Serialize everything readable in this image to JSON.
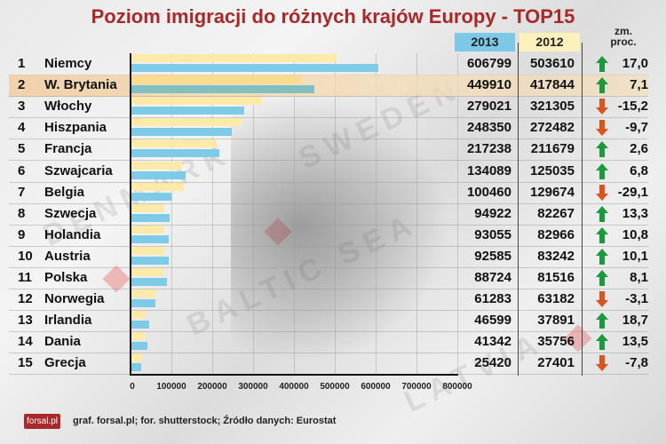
{
  "title": "Poziom imigracji do różnych krajów Europy - TOP15",
  "header": {
    "col_2013": "2013",
    "col_2012": "2012",
    "col_change_line1": "zm.",
    "col_change_line2": "proc."
  },
  "rows": [
    {
      "rank": "1",
      "country": "Niemcy",
      "v2013": "606799",
      "v2012": "503610",
      "trend": "up",
      "pct": "17,0"
    },
    {
      "rank": "2",
      "country": "W. Brytania",
      "v2013": "449910",
      "v2012": "417844",
      "trend": "up",
      "pct": "7,1",
      "highlight": true
    },
    {
      "rank": "3",
      "country": "Włochy",
      "v2013": "279021",
      "v2012": "321305",
      "trend": "down",
      "pct": "-15,2"
    },
    {
      "rank": "4",
      "country": "Hiszpania",
      "v2013": "248350",
      "v2012": "272482",
      "trend": "down",
      "pct": "-9,7"
    },
    {
      "rank": "5",
      "country": "Francja",
      "v2013": "217238",
      "v2012": "211679",
      "trend": "up",
      "pct": "2,6"
    },
    {
      "rank": "6",
      "country": "Szwajcaria",
      "v2013": "134089",
      "v2012": "125035",
      "trend": "up",
      "pct": "6,8"
    },
    {
      "rank": "7",
      "country": "Belgia",
      "v2013": "100460",
      "v2012": "129674",
      "trend": "down",
      "pct": "-29,1"
    },
    {
      "rank": "8",
      "country": "Szwecja",
      "v2013": "94922",
      "v2012": "82267",
      "trend": "up",
      "pct": "13,3"
    },
    {
      "rank": "9",
      "country": "Holandia",
      "v2013": "93055",
      "v2012": "82966",
      "trend": "up",
      "pct": "10,8"
    },
    {
      "rank": "10",
      "country": "Austria",
      "v2013": "92585",
      "v2012": "83242",
      "trend": "up",
      "pct": "10,1"
    },
    {
      "rank": "11",
      "country": "Polska",
      "v2013": "88724",
      "v2012": "81516",
      "trend": "up",
      "pct": "8,1"
    },
    {
      "rank": "12",
      "country": "Norwegia",
      "v2013": "61283",
      "v2012": "63182",
      "trend": "down",
      "pct": "-3,1"
    },
    {
      "rank": "13",
      "country": "Irlandia",
      "v2013": "46599",
      "v2012": "37891",
      "trend": "up",
      "pct": "18,7"
    },
    {
      "rank": "14",
      "country": "Dania",
      "v2013": "41342",
      "v2012": "35756",
      "trend": "up",
      "pct": "13,5"
    },
    {
      "rank": "15",
      "country": "Grecja",
      "v2013": "25420",
      "v2012": "27401",
      "trend": "down",
      "pct": "-7,8"
    }
  ],
  "axis": {
    "ticks": [
      "0",
      "100000",
      "200000",
      "300000",
      "400000",
      "500000",
      "600000",
      "700000",
      "800000"
    ]
  },
  "footer": {
    "logo": "forsal.pl",
    "credits": "graf. forsal.pl; for. shutterstock;  Źródło danych:  Eurostat"
  },
  "colors": {
    "title": "#a9292b",
    "bar_2013": "#7ecbe8",
    "bar_2012": "#fde9a8",
    "arrow_up": "#1a9a3c",
    "arrow_down": "#d9541e",
    "highlight_row": "#f0cda0"
  },
  "chart_data": {
    "type": "bar",
    "orientation": "horizontal",
    "title": "Poziom imigracji do różnych krajów Europy - TOP15",
    "categories": [
      "Niemcy",
      "W. Brytania",
      "Włochy",
      "Hiszpania",
      "Francja",
      "Szwajcaria",
      "Belgia",
      "Szwecja",
      "Holandia",
      "Austria",
      "Polska",
      "Norwegia",
      "Irlandia",
      "Dania",
      "Grecja"
    ],
    "series": [
      {
        "name": "2012",
        "values": [
          503610,
          417844,
          321305,
          272482,
          211679,
          125035,
          129674,
          82267,
          82966,
          83242,
          81516,
          63182,
          37891,
          35756,
          27401
        ]
      },
      {
        "name": "2013",
        "values": [
          606799,
          449910,
          279021,
          248350,
          217238,
          134089,
          100460,
          94922,
          93055,
          92585,
          88724,
          61283,
          46599,
          41342,
          25420
        ]
      }
    ],
    "change_pct": [
      17.0,
      7.1,
      -15.2,
      -9.7,
      2.6,
      6.8,
      -29.1,
      13.3,
      10.8,
      10.1,
      8.1,
      -3.1,
      18.7,
      13.5,
      -7.8
    ],
    "xlabel": "",
    "ylabel": "",
    "xlim": [
      0,
      800000
    ],
    "xticks": [
      0,
      100000,
      200000,
      300000,
      400000,
      500000,
      600000,
      700000,
      800000
    ],
    "grid": true,
    "legend": "column headers (2013 blue, 2012 yellow)",
    "source": "Eurostat"
  }
}
